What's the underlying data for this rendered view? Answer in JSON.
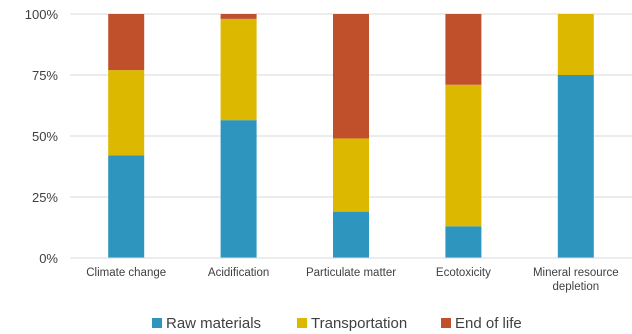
{
  "chart_data": {
    "type": "bar",
    "stacked": true,
    "percent": true,
    "categories": [
      "Climate change",
      "Acidification",
      "Particulate matter",
      "Ecotoxicity",
      "Mineral resource depletion"
    ],
    "category_lines": [
      [
        "Climate change"
      ],
      [
        "Acidification"
      ],
      [
        "Particulate matter"
      ],
      [
        "Ecotoxicity"
      ],
      [
        "Mineral resource",
        "depletion"
      ]
    ],
    "series": [
      {
        "name": "Raw materials",
        "color": "#2e96be",
        "values": [
          42,
          56.5,
          19,
          13,
          75
        ]
      },
      {
        "name": "Transportation",
        "color": "#ddb800",
        "values": [
          35,
          41.5,
          30,
          58,
          25
        ]
      },
      {
        "name": "End of life",
        "color": "#c0502c",
        "values": [
          23,
          2,
          51,
          29,
          0
        ]
      }
    ],
    "yticks": [
      "0%",
      "25%",
      "50%",
      "75%",
      "100%"
    ],
    "ylim": [
      0,
      100
    ],
    "grid": true,
    "legend": "bottom"
  }
}
